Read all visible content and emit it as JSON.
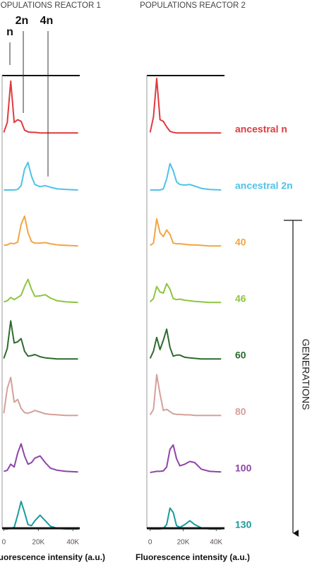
{
  "chart_data": [
    {
      "type": "line",
      "title": "POPULATIONS REACTOR 1",
      "x_label": "Fluorescence intensity (a.u.)",
      "annotations": [
        "n",
        "2n",
        "4n"
      ],
      "x": [
        0,
        2000,
        4000,
        6000,
        8000,
        10000,
        12000,
        14000,
        16000,
        18000,
        21000,
        24000,
        27000,
        31000,
        36000,
        43000
      ],
      "xlim": [
        -1000,
        44000
      ],
      "xticks": [
        0,
        {
          "value": 20000,
          "label": "20K"
        },
        {
          "value": 40000,
          "label": "40K"
        }
      ],
      "ylim": [
        0,
        100
      ],
      "series": [
        {
          "color": "#e03a3e",
          "values": [
            2,
            20,
            95,
            20,
            25,
            22,
            6,
            3,
            2,
            2,
            1,
            1,
            1,
            1,
            1,
            1
          ]
        },
        {
          "color": "#4ec3e8",
          "values": [
            0,
            0,
            0,
            0,
            1,
            8,
            38,
            50,
            25,
            10,
            6,
            8,
            5,
            2,
            1,
            0
          ]
        },
        {
          "color": "#f4a443",
          "values": [
            2,
            3,
            6,
            5,
            8,
            40,
            55,
            25,
            9,
            6,
            6,
            7,
            5,
            3,
            2,
            1
          ]
        },
        {
          "color": "#8cc63f",
          "values": [
            2,
            4,
            10,
            6,
            10,
            14,
            30,
            43,
            25,
            12,
            13,
            15,
            9,
            4,
            2,
            1
          ]
        },
        {
          "color": "#2e6b2e",
          "values": [
            2,
            20,
            70,
            30,
            32,
            38,
            15,
            6,
            7,
            9,
            5,
            3,
            2,
            1,
            1,
            1
          ]
        },
        {
          "color": "#d4a09a",
          "values": [
            5,
            50,
            70,
            25,
            30,
            14,
            6,
            5,
            7,
            10,
            7,
            4,
            3,
            2,
            1,
            1
          ]
        },
        {
          "color": "#8e44a8",
          "values": [
            2,
            4,
            15,
            10,
            35,
            52,
            30,
            15,
            18,
            26,
            30,
            18,
            8,
            4,
            2,
            1
          ]
        },
        {
          "color": "#1a9b9b",
          "values": [
            0,
            0,
            1,
            3,
            25,
            50,
            30,
            8,
            6,
            15,
            25,
            15,
            5,
            1,
            0,
            0
          ]
        }
      ]
    },
    {
      "type": "line",
      "title": "POPULATIONS REACTOR 2",
      "x_label": "Fluorescence intensity (a.u.)",
      "generations_label": "GENERATIONS",
      "x": [
        0,
        2000,
        4000,
        6000,
        8000,
        10000,
        12000,
        14000,
        16000,
        18000,
        21000,
        24000,
        27000,
        31000,
        36000,
        43000
      ],
      "xlim": [
        -2000,
        45000
      ],
      "xticks": [
        0,
        {
          "value": 20000,
          "label": "20K"
        },
        {
          "value": 40000,
          "label": "40K"
        }
      ],
      "ylim": [
        0,
        100
      ],
      "series": [
        {
          "name": "ancestral n",
          "color": "#e03a3e",
          "values": [
            2,
            30,
            100,
            25,
            22,
            12,
            4,
            2,
            1,
            1,
            1,
            1,
            1,
            1,
            1,
            1
          ]
        },
        {
          "name": "ancestral 2n",
          "color": "#4ec3e8",
          "values": [
            0,
            0,
            0,
            0,
            2,
            20,
            48,
            35,
            15,
            10,
            9,
            10,
            7,
            3,
            1,
            0
          ]
        },
        {
          "name": "40",
          "color": "#f4a443",
          "values": [
            2,
            6,
            50,
            25,
            18,
            30,
            22,
            6,
            5,
            5,
            4,
            3,
            3,
            2,
            1,
            1
          ]
        },
        {
          "name": "46",
          "color": "#8cc63f",
          "values": [
            2,
            8,
            30,
            20,
            18,
            35,
            25,
            8,
            6,
            7,
            5,
            4,
            3,
            2,
            1,
            1
          ]
        },
        {
          "name": "60",
          "color": "#2e6b2e",
          "values": [
            2,
            15,
            40,
            18,
            35,
            55,
            22,
            6,
            8,
            8,
            4,
            3,
            2,
            1,
            1,
            1
          ]
        },
        {
          "name": "80",
          "color": "#d4a09a",
          "values": [
            2,
            12,
            75,
            40,
            10,
            12,
            8,
            4,
            3,
            3,
            2,
            2,
            1,
            1,
            1,
            1
          ]
        },
        {
          "name": "100",
          "color": "#8e44a8",
          "values": [
            0,
            1,
            2,
            2,
            3,
            10,
            42,
            50,
            25,
            12,
            15,
            20,
            18,
            6,
            2,
            1
          ]
        },
        {
          "name": "130",
          "color": "#1a9b9b",
          "values": [
            0,
            0,
            0,
            0,
            1,
            8,
            38,
            30,
            6,
            3,
            8,
            15,
            8,
            2,
            0,
            0
          ]
        }
      ]
    }
  ]
}
